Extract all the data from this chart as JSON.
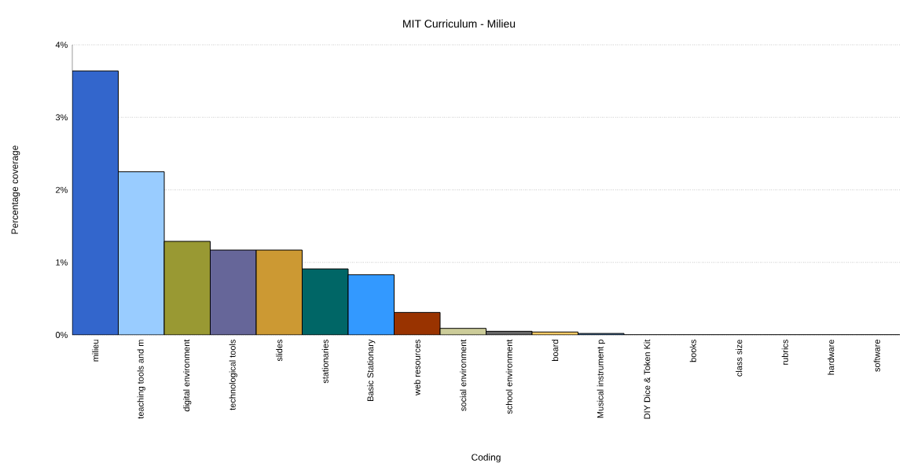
{
  "chart_data": {
    "type": "bar",
    "title": "MIT Curriculum - Milieu",
    "xlabel": "Coding",
    "ylabel": "Percentage coverage",
    "categories": [
      "milieu",
      "teaching tools and m",
      "digital environment",
      "technological tools",
      "slides",
      "stationaries",
      "Basic Stationary",
      "web resources",
      "social environment",
      "school environment",
      "board",
      "Musical instrument p",
      "DIY Dice & Token Kit",
      "books",
      "class size",
      "rubrics",
      "hardware",
      "software"
    ],
    "values": [
      3.64,
      2.25,
      1.29,
      1.17,
      1.17,
      0.91,
      0.83,
      0.31,
      0.09,
      0.05,
      0.04,
      0.02,
      0,
      0,
      0,
      0,
      0,
      0
    ],
    "colors": [
      "#3366cc",
      "#99ccff",
      "#999933",
      "#666699",
      "#cc9933",
      "#006666",
      "#3399ff",
      "#993300",
      "#cccc99",
      "#666666",
      "#ffcc66",
      "#336699",
      "#99cc66",
      "#cc6666",
      "#9966cc",
      "#669999",
      "#cc9966",
      "#6699cc"
    ],
    "ylim": [
      0,
      4
    ],
    "yticks": [
      {
        "value": 0,
        "label": "0%"
      },
      {
        "value": 1,
        "label": "1%"
      },
      {
        "value": 2,
        "label": "2%"
      },
      {
        "value": 3,
        "label": "3%"
      },
      {
        "value": 4,
        "label": "4%"
      }
    ],
    "grid": "y"
  }
}
